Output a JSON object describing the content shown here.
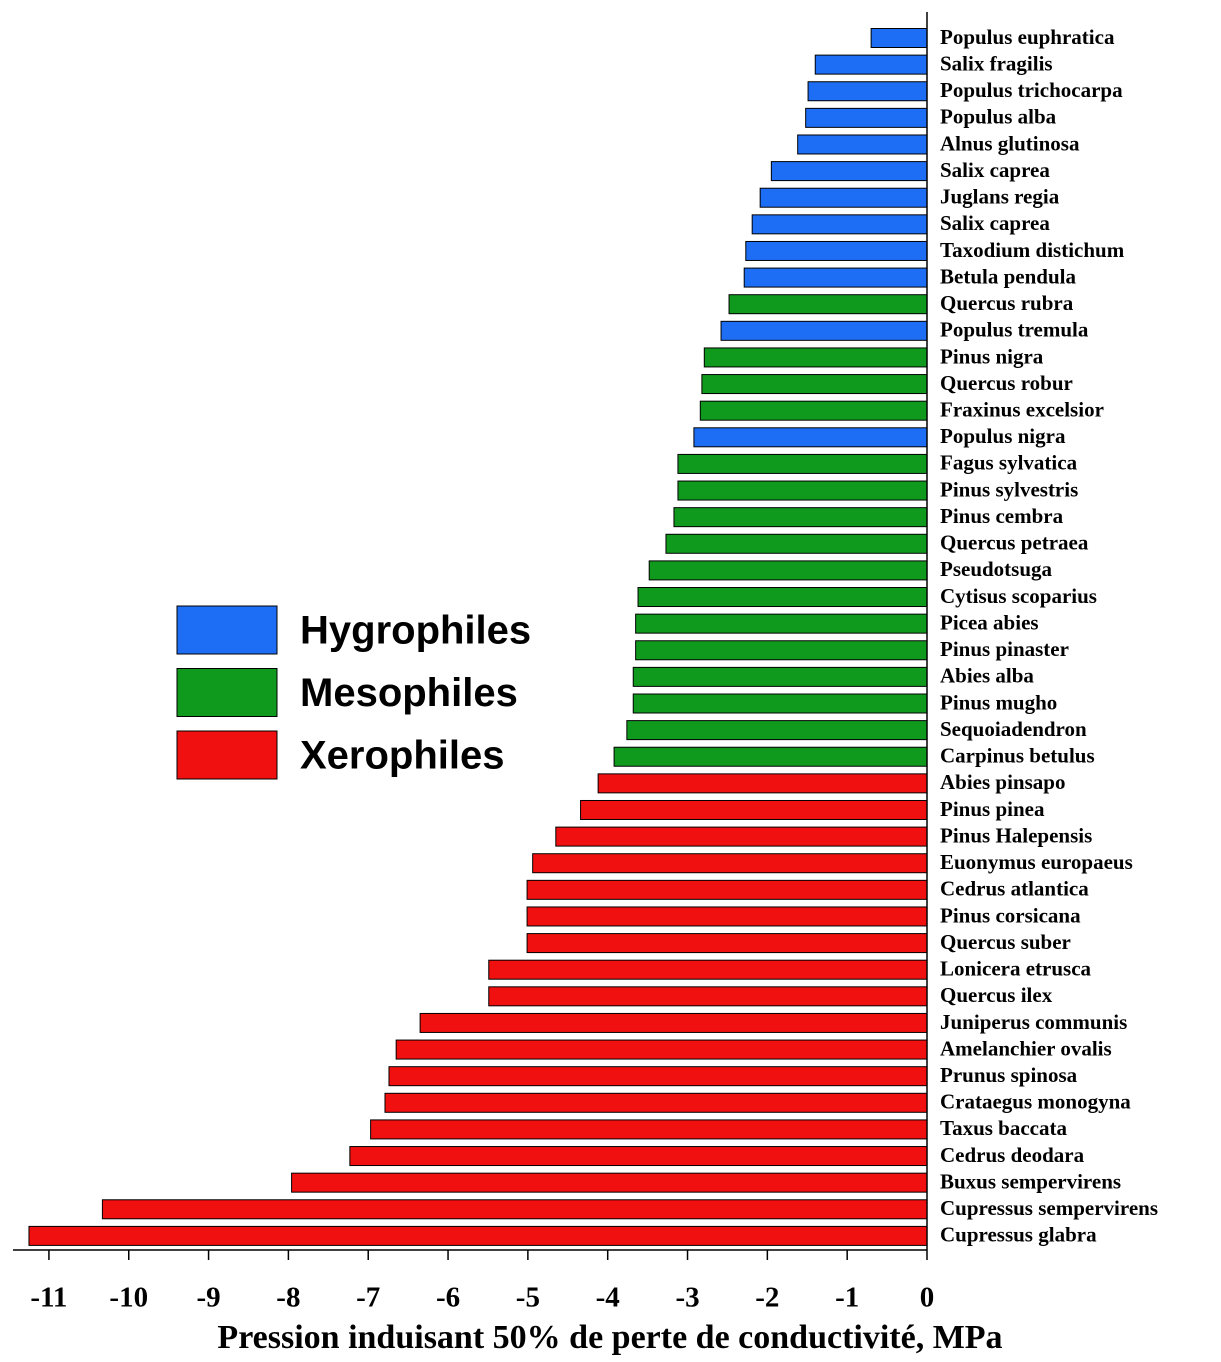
{
  "chart_data": {
    "type": "barh",
    "x_label": "Pression induisant 50% de perte de conductivité, MPa",
    "categories": [
      "Populus euphratica",
      "Salix fragilis",
      "Populus trichocarpa",
      "Populus alba",
      "Alnus glutinosa",
      "Salix caprea",
      "Juglans regia",
      "Salix caprea",
      "Taxodium distichum",
      "Betula pendula",
      "Quercus rubra",
      "Populus tremula",
      "Pinus nigra",
      "Quercus robur",
      "Fraxinus excelsior",
      "Populus nigra",
      "Fagus sylvatica",
      "Pinus sylvestris",
      "Pinus cembra",
      "Quercus petraea",
      "Pseudotsuga",
      "Cytisus scoparius",
      "Picea abies",
      "Pinus pinaster",
      "Abies alba",
      "Pinus mugho",
      "Sequoiadendron",
      "Carpinus betulus",
      "Abies pinsapo",
      "Pinus pinea",
      "Pinus Halepensis",
      "Euonymus europaeus",
      "Cedrus atlantica",
      "Pinus corsicana",
      "Quercus suber",
      "Lonicera etrusca",
      "Quercus ilex",
      "Juniperus communis",
      "Amelanchier ovalis",
      "Prunus spinosa",
      "Crataegus monogyna",
      "Taxus baccata",
      "Cedrus deodara",
      "Buxus sempervirens",
      "Cupressus sempervirens",
      "Cupressus glabra"
    ],
    "series": [
      {
        "name": "Hygrophiles",
        "color": "#1e6ef5",
        "values": [
          -0.7,
          -1.4,
          -1.49,
          -1.52,
          -1.62,
          -1.95,
          -2.09,
          -2.19,
          -2.27,
          -2.29,
          null,
          -2.58,
          null,
          null,
          null,
          -2.92,
          null,
          null,
          null,
          null,
          null,
          null,
          null,
          null,
          null,
          null,
          null,
          null,
          null,
          null,
          null,
          null,
          null,
          null,
          null,
          null,
          null,
          null,
          null,
          null,
          null,
          null,
          null,
          null,
          null,
          null
        ]
      },
      {
        "name": "Mesophiles",
        "color": "#0f9a1e",
        "values": [
          null,
          null,
          null,
          null,
          null,
          null,
          null,
          null,
          null,
          null,
          -2.48,
          null,
          -2.79,
          -2.82,
          -2.84,
          null,
          -3.12,
          -3.12,
          -3.17,
          -3.27,
          -3.48,
          -3.62,
          -3.65,
          -3.65,
          -3.68,
          -3.68,
          -3.76,
          -3.92,
          null,
          null,
          null,
          null,
          null,
          null,
          null,
          null,
          null,
          null,
          null,
          null,
          null,
          null,
          null,
          null,
          null,
          null
        ]
      },
      {
        "name": "Xerophiles",
        "color": "#f01010",
        "values": [
          null,
          null,
          null,
          null,
          null,
          null,
          null,
          null,
          null,
          null,
          null,
          null,
          null,
          null,
          null,
          null,
          null,
          null,
          null,
          null,
          null,
          null,
          null,
          null,
          null,
          null,
          null,
          null,
          -4.12,
          -4.34,
          -4.65,
          -4.94,
          -5.01,
          -5.01,
          -5.01,
          -5.49,
          -5.49,
          -6.35,
          -6.65,
          -6.74,
          -6.79,
          -6.97,
          -7.23,
          -7.96,
          -10.33,
          -11.25
        ]
      }
    ],
    "xlim": [
      -11.45,
      0
    ],
    "xticks": [
      -11,
      -10,
      -9,
      -8,
      -7,
      -6,
      -5,
      -4,
      -3,
      -2,
      -1,
      0
    ]
  }
}
